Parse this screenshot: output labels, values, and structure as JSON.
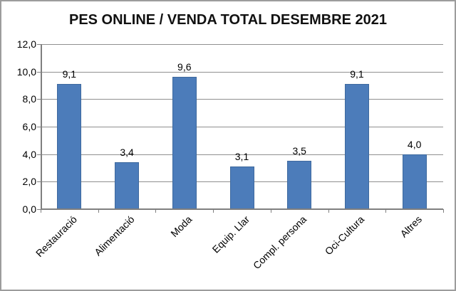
{
  "window": {
    "background": "#ffffff",
    "border_color": "#9c9c9c"
  },
  "chart_data": {
    "type": "bar",
    "title": "PES ONLINE / VENDA TOTAL DESEMBRE 2021",
    "categories": [
      "Restauració",
      "Alimentació",
      "Moda",
      "Equip. Llar",
      "Compl. persona",
      "Oci-Cultura",
      "Altres"
    ],
    "values": [
      9.1,
      3.4,
      9.6,
      3.1,
      3.5,
      9.1,
      4.0
    ],
    "value_labels": [
      "9,1",
      "3,4",
      "9,6",
      "3,1",
      "3,5",
      "9,1",
      "4,0"
    ],
    "xlabel": "",
    "ylabel": "",
    "ylim": [
      0,
      12
    ],
    "ytick_step": 2,
    "ytick_labels": [
      "0,0",
      "2,0",
      "4,0",
      "6,0",
      "8,0",
      "10,0",
      "12,0"
    ],
    "grid": true,
    "legend_position": "none",
    "bar_color": "#4c7cba",
    "bar_border_color": "#3e699e",
    "gridline_color": "#8f8f8f",
    "axis_color": "#7f7f7f",
    "label_color": "#000000",
    "title_color": "#111111"
  }
}
